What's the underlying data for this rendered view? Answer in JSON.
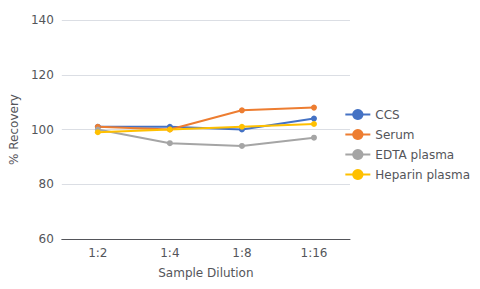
{
  "chart_data": {
    "type": "line",
    "xlabel": "Sample Dilution",
    "ylabel": "% Recovery",
    "categories": [
      "1:2",
      "1:4",
      "1:8",
      "1:16"
    ],
    "series": [
      {
        "name": "CCS",
        "color": "#4472C4",
        "marker": "circle",
        "values": [
          101,
          101,
          100,
          104
        ]
      },
      {
        "name": "Serum",
        "color": "#ED7D31",
        "marker": "circle",
        "values": [
          101,
          100,
          107,
          108
        ]
      },
      {
        "name": "EDTA plasma",
        "color": "#A5A5A5",
        "marker": "circle",
        "values": [
          100,
          95,
          94,
          97
        ]
      },
      {
        "name": "Heparin plasma",
        "color": "#FFC000",
        "marker": "circle",
        "values": [
          99,
          100,
          101,
          102
        ]
      }
    ],
    "ylim": [
      60,
      140
    ],
    "yticks": [
      60,
      80,
      100,
      120,
      140
    ],
    "grid": true,
    "legend": "right"
  }
}
